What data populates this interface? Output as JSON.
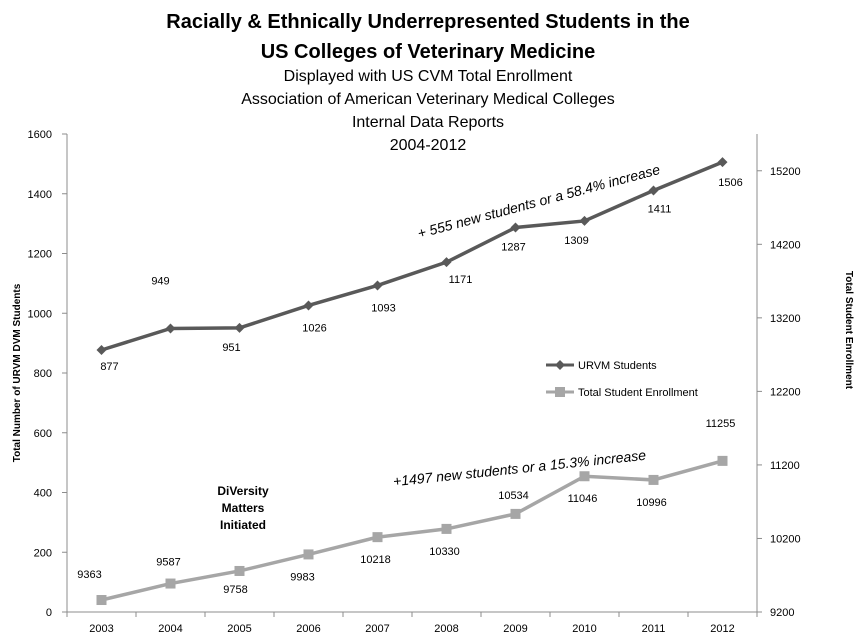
{
  "chart_data": {
    "type": "line",
    "title": "Racially & Ethnically Underrepresented Students in the US Colleges of Veterinary Medicine",
    "title_lines": [
      "Racially & Ethnically Underrepresented Students in the",
      "US Colleges of Veterinary Medicine"
    ],
    "subtitle_lines": [
      "Displayed with US CVM Total Enrollment",
      "Association of American Veterinary Medical Colleges",
      "Internal Data Reports",
      "2004-2012"
    ],
    "ylabel_left": "Total Number of URVM DVM Students",
    "ylabel_right": "Total Student Enrollment",
    "categories": [
      "2003",
      "2004",
      "2005",
      "2006",
      "2007",
      "2008",
      "2009",
      "2010",
      "2011",
      "2012"
    ],
    "ylim_left": [
      0,
      1600
    ],
    "yticks_left": [
      0,
      200,
      400,
      600,
      800,
      1000,
      1200,
      1400,
      1600
    ],
    "ylim_right": [
      9200,
      15700
    ],
    "yticks_right": [
      9200,
      10200,
      11200,
      12200,
      13200,
      14200,
      15200
    ],
    "series": [
      {
        "name": "URVM Students",
        "axis": "left",
        "color": "#595959",
        "marker": "diamond",
        "values": [
          877,
          949,
          951,
          1026,
          1093,
          1171,
          1287,
          1309,
          1411,
          1506
        ],
        "labels": [
          "877",
          "949",
          "951",
          "1026",
          "1093",
          "1171",
          "1287",
          "1309",
          "1411",
          "1506"
        ]
      },
      {
        "name": "Total Student Enrollment",
        "axis": "right",
        "color": "#a6a6a6",
        "marker": "square",
        "values": [
          9363,
          9587,
          9758,
          9983,
          10218,
          10330,
          10534,
          11046,
          10996,
          11255
        ],
        "labels": [
          "9363",
          "9587",
          "9758",
          "9983",
          "10218",
          "10330",
          "10534",
          "11046",
          "10996",
          "11255"
        ]
      }
    ],
    "annotations": [
      "+ 555 new students or a 58.4% increase",
      "+1497 new students or a 15.3% increase",
      "DiVersity",
      "Matters",
      "Initiated"
    ],
    "legend_position": "middle-right",
    "grid": false
  }
}
